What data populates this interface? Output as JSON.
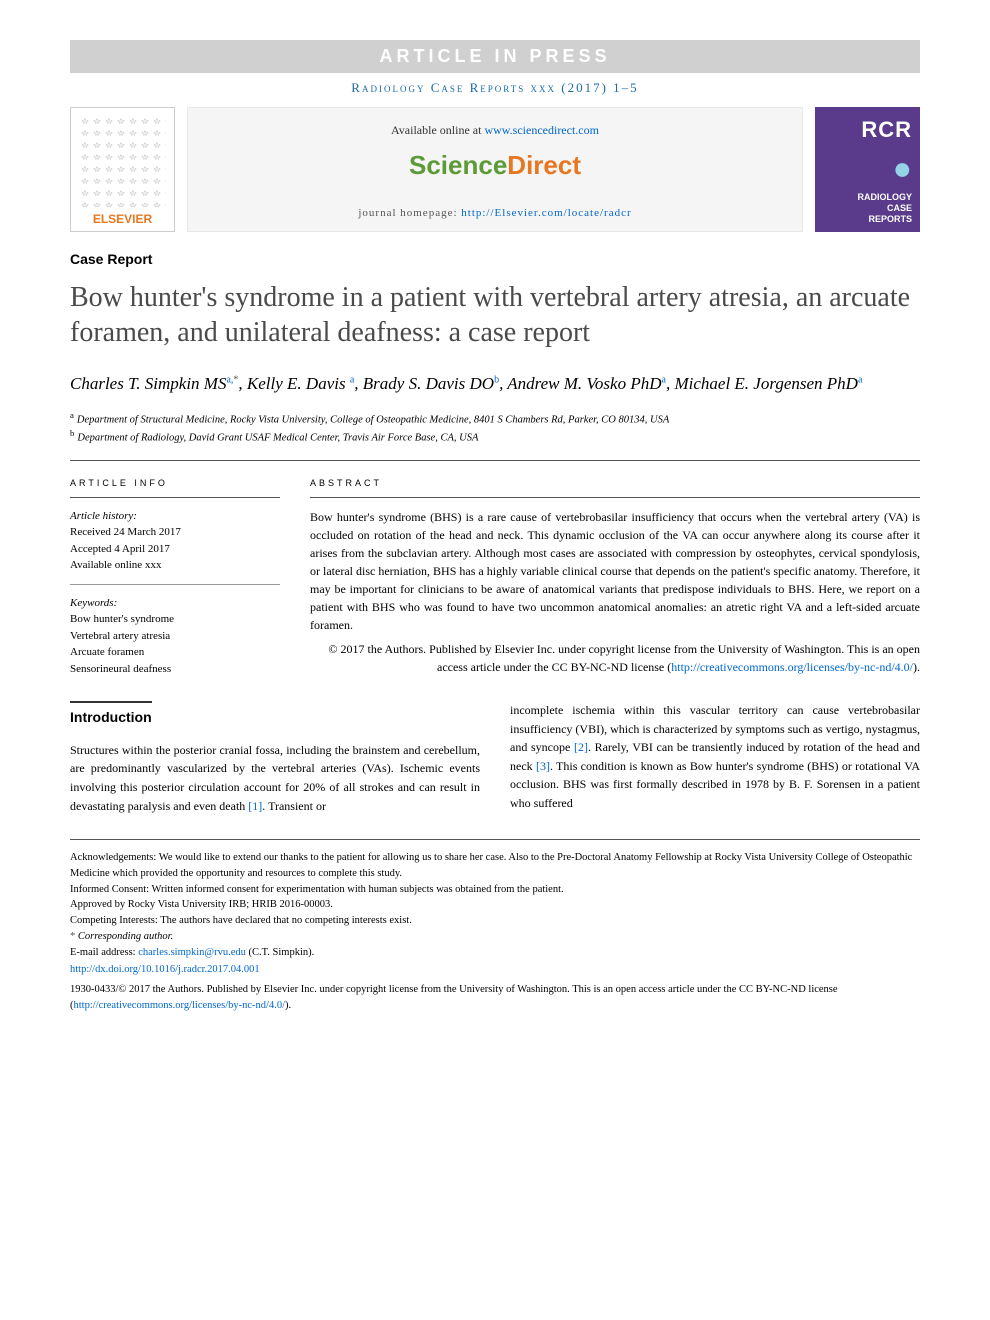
{
  "banner": "ARTICLE IN PRESS",
  "journal_ref": "Radiology Case Reports xxx (2017) 1–5",
  "header": {
    "elsevier_label": "ELSEVIER",
    "avail_prefix": "Available online at ",
    "avail_link_text": "www.sciencedirect.com",
    "sd_brand_1": "Science",
    "sd_brand_2": "Direct",
    "homepage_prefix": "journal homepage: ",
    "homepage_link_text": "http://Elsevier.com/locate/radcr",
    "rcr_abbr": "RCR",
    "rcr_circle": "●",
    "rcr_name_l1": "RADIOLOGY",
    "rcr_name_l2": "CASE",
    "rcr_name_l3": "REPORTS"
  },
  "article_type": "Case Report",
  "title": "Bow hunter's syndrome in a patient with vertebral artery atresia, an arcuate foramen, and unilateral deafness: a case report",
  "authors": {
    "a1_name": "Charles T. Simpkin MS",
    "a1_affs": "a,",
    "a1_star": "*",
    "a2_name": "Kelly E. Davis ",
    "a2_affs": "a",
    "a3_name": "Brady S. Davis DO",
    "a3_affs": "b",
    "a4_name": "Andrew M. Vosko PhD",
    "a4_affs": "a",
    "a5_name": "Michael E. Jorgensen PhD",
    "a5_affs": "a"
  },
  "affiliations": {
    "a": "Department of Structural Medicine, Rocky Vista University, College of Osteopathic Medicine, 8401 S Chambers Rd, Parker, CO 80134, USA",
    "b": "Department of Radiology, David Grant USAF Medical Center, Travis Air Force Base, CA, USA"
  },
  "info": {
    "heading": "ARTICLE INFO",
    "history_label": "Article history:",
    "received": "Received 24 March 2017",
    "accepted": "Accepted 4 April 2017",
    "online": "Available online xxx",
    "keywords_label": "Keywords:",
    "kw1": "Bow hunter's syndrome",
    "kw2": "Vertebral artery atresia",
    "kw3": "Arcuate foramen",
    "kw4": "Sensorineural deafness"
  },
  "abstract": {
    "heading": "ABSTRACT",
    "text": "Bow hunter's syndrome (BHS) is a rare cause of vertebrobasilar insufficiency that occurs when the vertebral artery (VA) is occluded on rotation of the head and neck. This dynamic occlusion of the VA can occur anywhere along its course after it arises from the subclavian artery. Although most cases are associated with compression by osteophytes, cervical spondylosis, or lateral disc herniation, BHS has a highly variable clinical course that depends on the patient's specific anatomy. Therefore, it may be important for clinicians to be aware of anatomical variants that predispose individuals to BHS. Here, we report on a patient with BHS who was found to have two uncommon anatomical anomalies: an atretic right VA and a left-sided arcuate foramen.",
    "copyright": "© 2017 the Authors. Published by Elsevier Inc. under copyright license from the University of Washington. This is an open access article under the CC BY-NC-ND license (",
    "cc_link": "http://creativecommons.org/licenses/by-nc-nd/4.0/",
    "close": ")."
  },
  "intro": {
    "heading": "Introduction",
    "p_left": "Structures within the posterior cranial fossa, including the brainstem and cerebellum, are predominantly vascularized by the vertebral arteries (VAs). Ischemic events involving this posterior circulation account for 20% of all strokes and can result in devastating paralysis and even death ",
    "ref1": "[1]",
    "p_left_end": ". Transient or",
    "p_right": "incomplete ischemia within this vascular territory can cause vertebrobasilar insufficiency (VBI), which is characterized by symptoms such as vertigo, nystagmus, and syncope ",
    "ref2": "[2]",
    "p_right_mid": ". Rarely, VBI can be transiently induced by rotation of the head and neck ",
    "ref3": "[3]",
    "p_right_end": ". This condition is known as Bow hunter's syndrome (BHS) or rotational VA occlusion. BHS was first formally described in 1978 by B. F. Sorensen in a patient who suffered"
  },
  "footer": {
    "ack_label": "Acknowledgements:",
    "ack_text": " We would like to extend our thanks to the patient for allowing us to share her case. Also to the Pre-Doctoral Anatomy Fellowship at Rocky Vista University College of Osteopathic Medicine which provided the opportunity and resources to complete this study.",
    "consent_label": "Informed Consent:",
    "consent_text": " Written informed consent for experimentation with human subjects was obtained from the patient.",
    "irb": "Approved by Rocky Vista University IRB; HRIB 2016-00003.",
    "competing_label": "Competing Interests:",
    "competing_text": " The authors have declared that no competing interests exist.",
    "corr_star": "*",
    "corr_label": " Corresponding author.",
    "email_label": "E-mail address: ",
    "email": "charles.simpkin@rvu.edu",
    "email_suffix": " (C.T. Simpkin).",
    "doi": "http://dx.doi.org/10.1016/j.radcr.2017.04.001",
    "issn_copy": "1930-0433/© 2017 the Authors. Published by Elsevier Inc. under copyright license from the University of Washington. This is an open access article under the CC BY-NC-ND license (",
    "cc_link": "http://creativecommons.org/licenses/by-nc-nd/4.0/",
    "close": ")."
  },
  "colors": {
    "link": "#0066cc",
    "elsevier_orange": "#e87722",
    "sd_green": "#5b9b37",
    "rcr_purple": "#5a3a8a",
    "banner_grey": "#d0d0d0",
    "title_grey": "#4a4a4a"
  }
}
